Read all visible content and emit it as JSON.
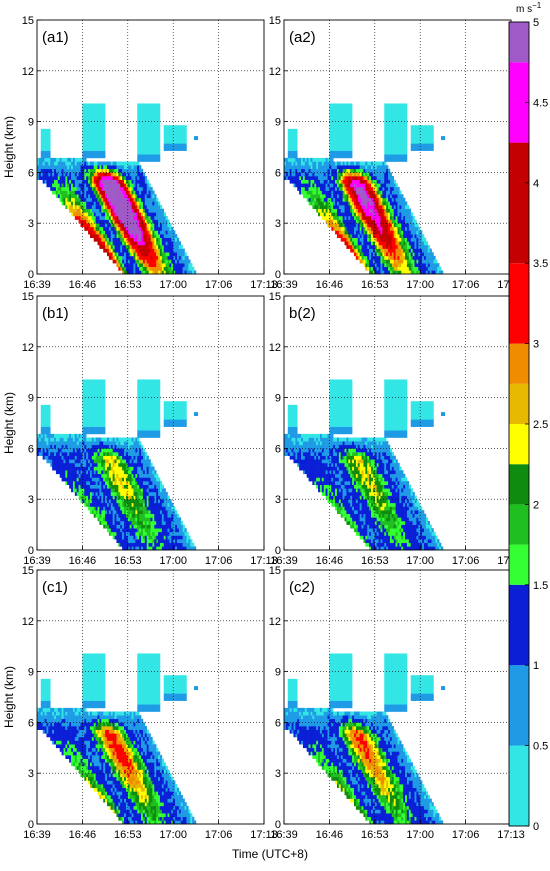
{
  "figure": {
    "xlabel": "Time (UTC+8)",
    "ylabel": "Height (km)",
    "colorbar_unit_base": "m s",
    "colorbar_unit_exp": "−1"
  },
  "chart_data": {
    "type": "heatmap",
    "x_ticks": [
      "16:39",
      "16:46",
      "16:53",
      "17:00",
      "17:06",
      "17:13"
    ],
    "y_ticks": [
      0,
      3,
      6,
      9,
      12,
      15
    ],
    "ylim": [
      0,
      15
    ],
    "grid": true,
    "colorbar": {
      "ticks": [
        "0",
        "0.5",
        "1",
        "1.5",
        "2",
        "2.5",
        "3",
        "3.5",
        "4",
        "4.5",
        "5"
      ],
      "range": [
        0,
        5
      ],
      "levels": [
        {
          "from": 0.0,
          "to": 0.5,
          "color": "#33e6e6"
        },
        {
          "from": 0.5,
          "to": 1.0,
          "color": "#1f9be6"
        },
        {
          "from": 1.0,
          "to": 1.5,
          "color": "#0a1fd6"
        },
        {
          "from": 1.5,
          "to": 1.75,
          "color": "#33ff33"
        },
        {
          "from": 1.75,
          "to": 2.0,
          "color": "#1fbf1f"
        },
        {
          "from": 2.0,
          "to": 2.25,
          "color": "#0f8c0f"
        },
        {
          "from": 2.25,
          "to": 2.5,
          "color": "#ffff00"
        },
        {
          "from": 2.5,
          "to": 2.75,
          "color": "#e6b800"
        },
        {
          "from": 2.75,
          "to": 3.0,
          "color": "#f08c00"
        },
        {
          "from": 3.0,
          "to": 3.5,
          "color": "#ff0000"
        },
        {
          "from": 3.5,
          "to": 4.25,
          "color": "#c40000"
        },
        {
          "from": 4.25,
          "to": 4.75,
          "color": "#ff00ff"
        },
        {
          "from": 4.75,
          "to": 5.0,
          "color": "#a05ac8"
        }
      ]
    },
    "panels": [
      {
        "label": "(a1)",
        "intensity": 1.0,
        "peak": 4.9
      },
      {
        "label": "(a2)",
        "intensity": 0.9,
        "peak": 4.2
      },
      {
        "label": "(b1)",
        "intensity": 0.6,
        "peak": 2.4
      },
      {
        "label": "b(2)",
        "intensity": 0.58,
        "peak": 2.4
      },
      {
        "label": "(c1)",
        "intensity": 0.62,
        "peak": 3.5
      },
      {
        "label": "(c2)",
        "intensity": 0.6,
        "peak": 3.3
      }
    ]
  }
}
